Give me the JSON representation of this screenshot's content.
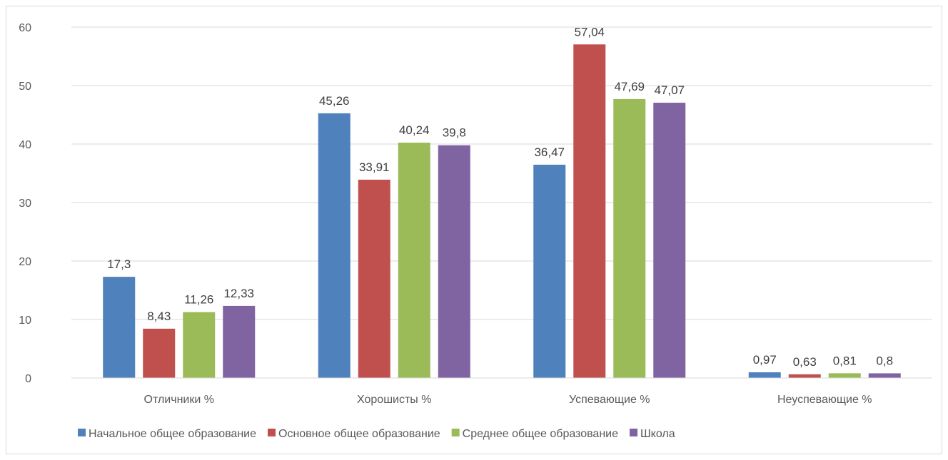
{
  "chart_data": {
    "type": "bar",
    "categories": [
      "Отличники %",
      "Хорошисты %",
      "Успевающие %",
      "Неуспевающие %"
    ],
    "series": [
      {
        "name": "Начальное общее образование",
        "color": "#4f81bd",
        "values": [
          17.3,
          45.26,
          36.47,
          0.97
        ],
        "labels": [
          "17,3",
          "45,26",
          "36,47",
          "0,97"
        ]
      },
      {
        "name": "Основное общее образование",
        "color": "#c0504d",
        "values": [
          8.43,
          33.91,
          57.04,
          0.63
        ],
        "labels": [
          "8,43",
          "33,91",
          "57,04",
          "0,63"
        ]
      },
      {
        "name": "Среднее общее образование",
        "color": "#9bbb59",
        "values": [
          11.26,
          40.24,
          47.69,
          0.81
        ],
        "labels": [
          "11,26",
          "40,24",
          "47,69",
          "0,81"
        ]
      },
      {
        "name": "Школа",
        "color": "#8064a2",
        "values": [
          12.33,
          39.8,
          47.07,
          0.8
        ],
        "labels": [
          "12,33",
          "39,8",
          "47,07",
          "0,8"
        ]
      }
    ],
    "ylim": [
      0,
      60
    ],
    "yticks": [
      "0",
      "10",
      "20",
      "30",
      "40",
      "50",
      "60"
    ],
    "grid": true,
    "legend_position": "bottom"
  }
}
